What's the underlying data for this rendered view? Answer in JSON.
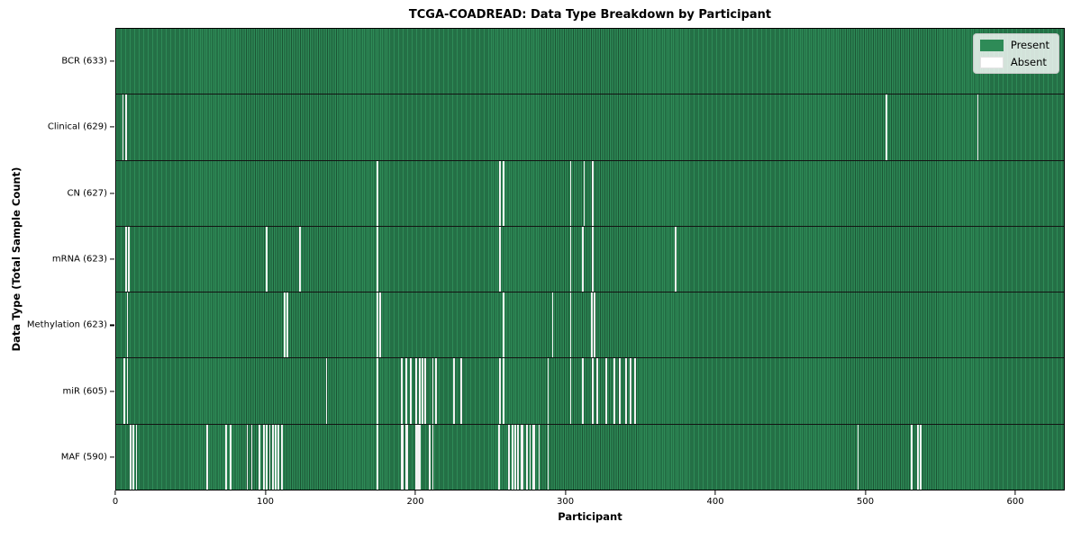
{
  "chart_data": {
    "type": "heatmap",
    "title": "TCGA-COADREAD: Data Type Breakdown by Participant",
    "xlabel": "Participant",
    "ylabel": "Data Type (Total Sample Count)",
    "x_range": [
      0,
      633
    ],
    "x_ticks": [
      0,
      100,
      200,
      300,
      400,
      500,
      600
    ],
    "grid": false,
    "legend_position": "upper right",
    "legend": [
      {
        "label": "Present",
        "color": "#2e8b57"
      },
      {
        "label": "Absent",
        "color": "#ffffff"
      }
    ],
    "colors": {
      "present": "#2e8b57",
      "present_edge_stripe": "#1b5434",
      "absent": "#f2f2f2",
      "plot_border": "#000000"
    },
    "rows": [
      {
        "label": "BCR (633)",
        "name": "BCR",
        "total": 633,
        "absent_count": 0,
        "absent": []
      },
      {
        "label": "Clinical (629)",
        "name": "Clinical",
        "total": 629,
        "absent_count": 4,
        "absent": [
          4,
          6,
          514,
          575
        ]
      },
      {
        "label": "CN (627)",
        "name": "CN",
        "total": 627,
        "absent_count": 6,
        "absent": [
          174,
          256,
          258,
          303,
          312,
          318
        ]
      },
      {
        "label": "mRNA (623)",
        "name": "mRNA",
        "total": 623,
        "absent_count": 10,
        "absent": [
          6,
          8,
          100,
          122,
          174,
          256,
          303,
          311,
          318,
          373
        ]
      },
      {
        "label": "Methylation (623)",
        "name": "Methylation",
        "total": 623,
        "absent_count": 10,
        "absent": [
          7,
          112,
          114,
          174,
          176,
          258,
          291,
          303,
          317,
          319
        ]
      },
      {
        "label": "miR (605)",
        "name": "miR",
        "total": 605,
        "absent_count": 28,
        "absent": [
          5,
          7,
          140,
          174,
          190,
          193,
          196,
          200,
          202,
          204,
          206,
          211,
          213,
          225,
          230,
          256,
          258,
          288,
          303,
          311,
          318,
          321,
          327,
          332,
          336,
          340,
          343,
          346
        ]
      },
      {
        "label": "MAF (590)",
        "name": "MAF",
        "total": 590,
        "absent_count": 43,
        "absent": [
          9,
          11,
          13,
          60,
          73,
          76,
          87,
          90,
          95,
          98,
          100,
          102,
          104,
          106,
          108,
          110,
          174,
          190,
          191,
          193,
          194,
          200,
          201,
          202,
          209,
          211,
          255,
          262,
          264,
          266,
          268,
          270,
          271,
          274,
          276,
          278,
          279,
          282,
          288,
          495,
          531,
          535,
          537
        ]
      }
    ]
  }
}
